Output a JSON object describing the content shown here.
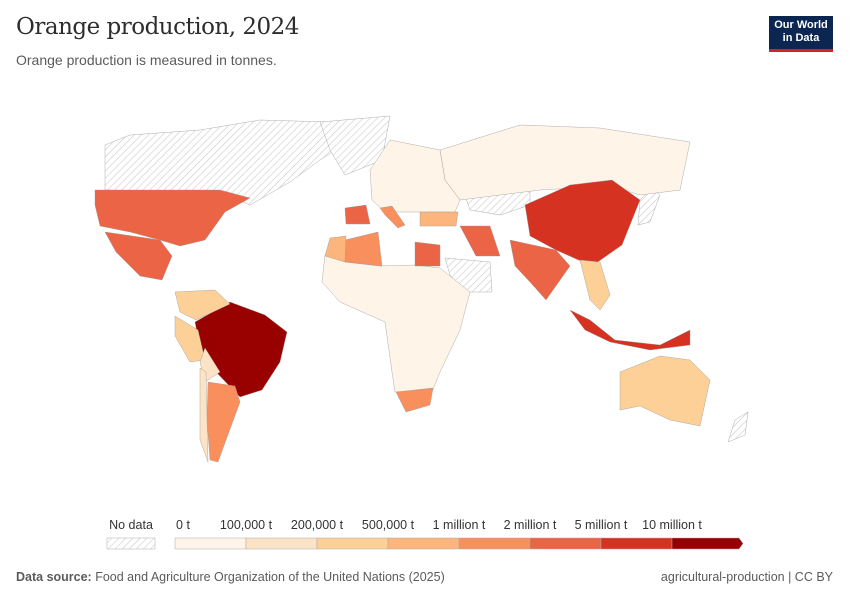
{
  "header": {
    "title": "Orange production, 2024",
    "subtitle": "Orange production is measured in tonnes.",
    "logo": "Our World in Data"
  },
  "legend": {
    "no_data_label": "No data",
    "bins": [
      {
        "label": "0 t",
        "color": "#fff4e8"
      },
      {
        "label": "100,000 t",
        "color": "#fde3c5"
      },
      {
        "label": "200,000 t",
        "color": "#fdd097"
      },
      {
        "label": "500,000 t",
        "color": "#fcb57c"
      },
      {
        "label": "1 million t",
        "color": "#f98f5c"
      },
      {
        "label": "2 million t",
        "color": "#eb6446"
      },
      {
        "label": "5 million t",
        "color": "#d63222"
      },
      {
        "label": "10 million t",
        "color": "#990000"
      }
    ]
  },
  "map_data": {
    "no_data": [
      "Canada",
      "Greenland",
      "Kazakhstan",
      "Saudi Arabia",
      "Japan",
      "New Zealand"
    ],
    "countries": [
      {
        "name": "Russia",
        "bin": 0
      },
      {
        "name": "Europe (other)",
        "bin": 0
      },
      {
        "name": "Africa (other)",
        "bin": 0
      },
      {
        "name": "United States",
        "bin": 5
      },
      {
        "name": "Mexico",
        "bin": 5
      },
      {
        "name": "Brazil",
        "bin": 7
      },
      {
        "name": "Colombia",
        "bin": 2
      },
      {
        "name": "Peru",
        "bin": 2
      },
      {
        "name": "Bolivia",
        "bin": 1
      },
      {
        "name": "Argentina",
        "bin": 4
      },
      {
        "name": "Chile",
        "bin": 1
      },
      {
        "name": "Algeria",
        "bin": 4
      },
      {
        "name": "Morocco",
        "bin": 3
      },
      {
        "name": "Egypt",
        "bin": 5
      },
      {
        "name": "South Africa",
        "bin": 4
      },
      {
        "name": "Spain",
        "bin": 5
      },
      {
        "name": "Italy",
        "bin": 4
      },
      {
        "name": "Turkey",
        "bin": 3
      },
      {
        "name": "Iran",
        "bin": 5
      },
      {
        "name": "China",
        "bin": 6
      },
      {
        "name": "India",
        "bin": 5
      },
      {
        "name": "Indonesia",
        "bin": 6
      },
      {
        "name": "Southeast Asia",
        "bin": 2
      },
      {
        "name": "Australia",
        "bin": 2
      }
    ]
  },
  "footer": {
    "source_label": "Data source:",
    "source": "Food and Agriculture Organization of the United Nations (2025)",
    "right": "agricultural-production | CC BY"
  }
}
